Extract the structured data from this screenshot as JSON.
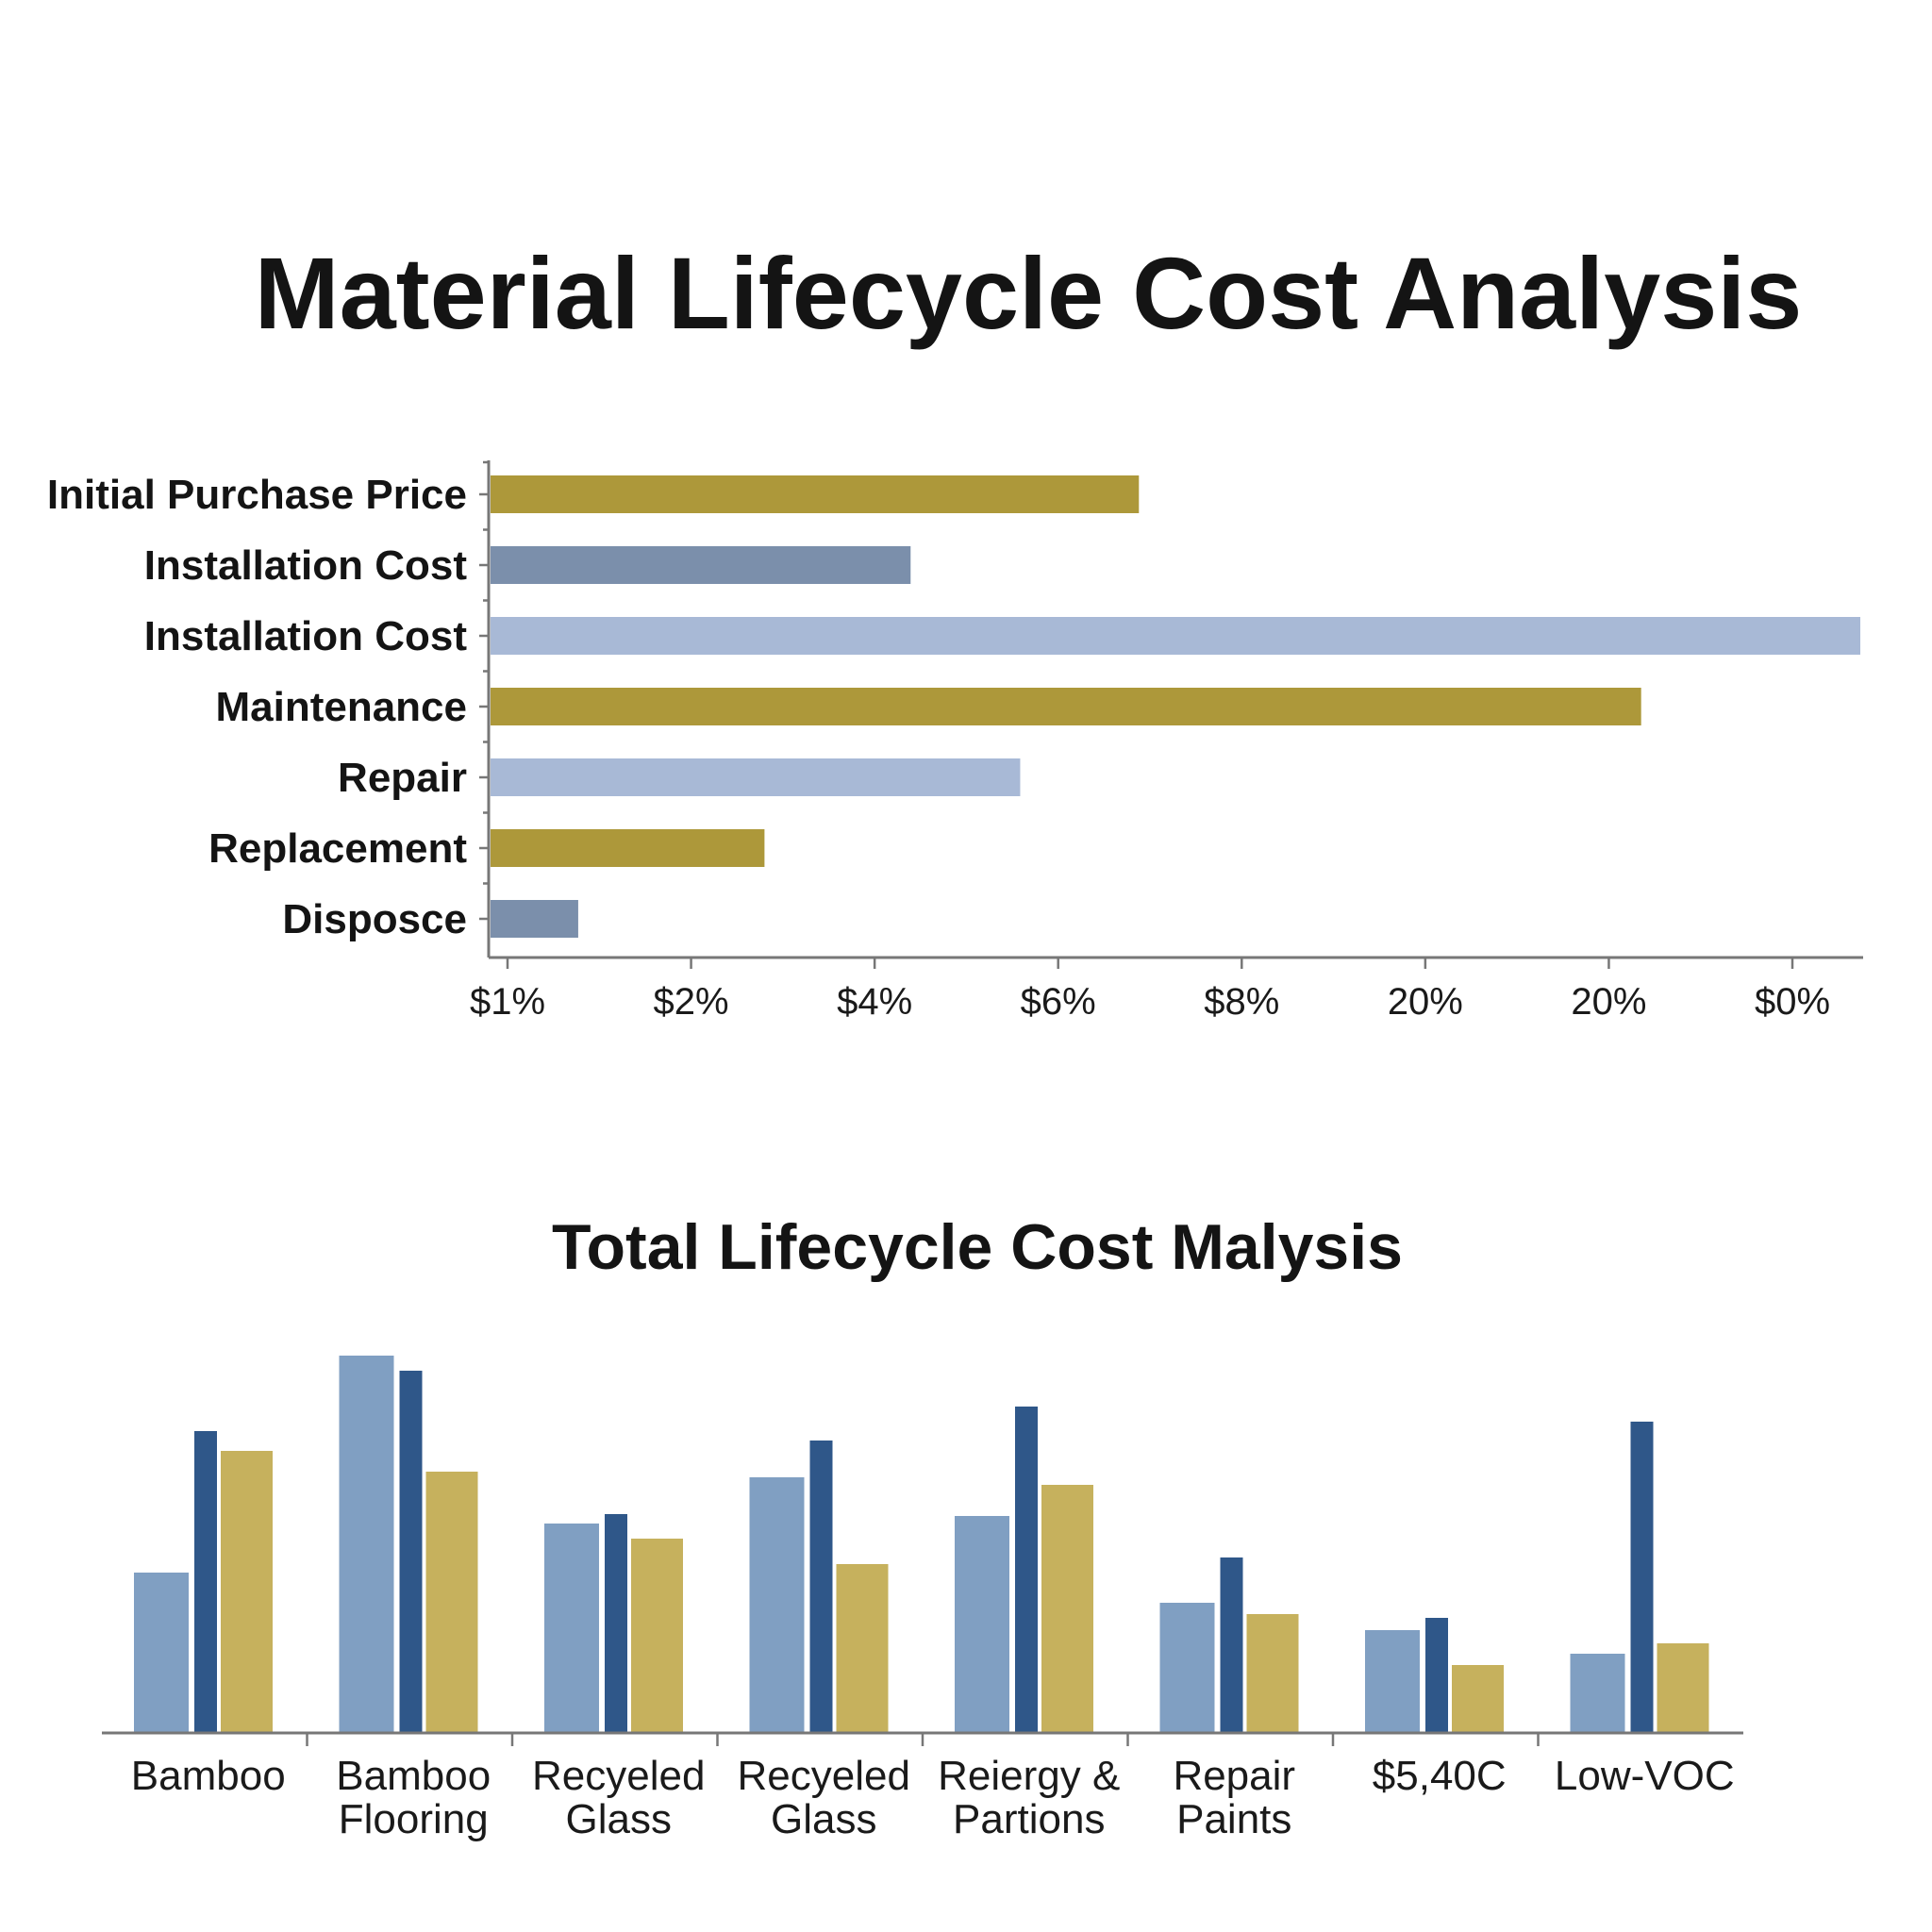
{
  "title": "Material Lifecycle Cost Analysis",
  "subtitle": "Total Lifecycle Cost Malysis",
  "colors": {
    "gold": "#ad983a",
    "slate_blue": "#7b8fab",
    "light_blue": "#a8b9d6",
    "mid_blue": "#809fc2",
    "navy": "#2f5789",
    "sand": "#c6b15d"
  },
  "chart_data": [
    {
      "type": "bar",
      "orientation": "horizontal",
      "categories": [
        "Initial Purchase Price",
        "Installation Cost",
        "Installation Cost",
        "Maintenance",
        "Repair",
        "Replacement",
        "Disposce"
      ],
      "values": [
        3.55,
        2.3,
        7.5,
        6.3,
        2.9,
        1.5,
        0.48
      ],
      "bar_colors": [
        "gold",
        "slate_blue",
        "light_blue",
        "gold",
        "light_blue",
        "gold",
        "slate_blue"
      ],
      "x_tick_labels": [
        "$1%",
        "$2%",
        "$4%",
        "$6%",
        "$8%",
        "20%",
        "20%",
        "$0%"
      ],
      "xlim": [
        0,
        7.5
      ],
      "grid": false
    },
    {
      "type": "bar",
      "orientation": "vertical",
      "title": "Total Lifecycle Cost Malysis",
      "categories": [
        "Bamboo",
        "Bamboo Flooring",
        "Recyeled Glass",
        "Recyeled Glass",
        "Reiergy & Partions",
        "Repair Paints",
        "$5,40C",
        "Low-VOC"
      ],
      "series": [
        {
          "values": [
            170,
            400,
            222,
            271,
            230,
            138,
            109,
            84
          ],
          "color": "mid_blue"
        },
        {
          "values": [
            320,
            384,
            232,
            310,
            346,
            186,
            122,
            330
          ],
          "color": "navy"
        },
        {
          "values": [
            299,
            277,
            206,
            179,
            263,
            126,
            72,
            95
          ],
          "color": "sand"
        }
      ],
      "ylim": [
        0,
        400
      ],
      "grid": false
    }
  ]
}
